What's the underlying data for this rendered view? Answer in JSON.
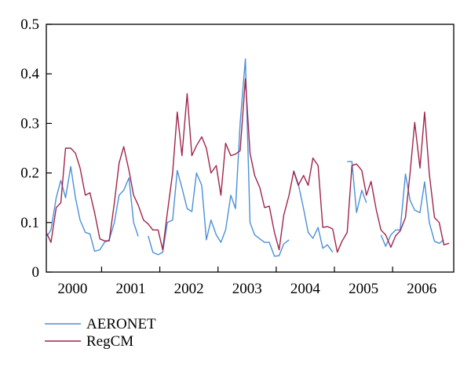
{
  "chart_data": {
    "type": "line",
    "title": "",
    "xlabel": "",
    "ylabel": "",
    "ylim": [
      0,
      0.5
    ],
    "xlim": [
      1999.55,
      2006.55
    ],
    "grid": false,
    "legend_position": "bottom-left",
    "y_ticks": [
      "0",
      "0.1",
      "0.2",
      "0.3",
      "0.4",
      "0.5"
    ],
    "x_tick_labels": [
      {
        "label": "2000",
        "x": 2000.0
      },
      {
        "label": "2001",
        "x": 2001.0
      },
      {
        "label": "2002",
        "x": 2002.0
      },
      {
        "label": "2003",
        "x": 2003.0
      },
      {
        "label": "2004",
        "x": 2004.0
      },
      {
        "label": "2005",
        "x": 2005.0
      },
      {
        "label": "2006",
        "x": 2006.0
      }
    ],
    "x_year_boundaries": [
      2000.5,
      2001.5,
      2002.5,
      2003.5,
      2004.5,
      2005.5
    ],
    "series": [
      {
        "name": "AERONET",
        "color": "#4a90d9",
        "points": [
          [
            1999.55,
            0.07
          ],
          [
            1999.63,
            0.085
          ],
          [
            1999.72,
            0.15
          ],
          [
            1999.8,
            0.185
          ],
          [
            1999.88,
            0.15
          ],
          [
            1999.97,
            0.213
          ],
          [
            2000.05,
            0.15
          ],
          [
            2000.13,
            0.105
          ],
          [
            2000.22,
            0.08
          ],
          [
            2000.3,
            0.077
          ],
          [
            2000.38,
            0.042
          ],
          [
            2000.47,
            0.045
          ],
          [
            2000.55,
            0.06
          ],
          [
            2000.63,
            0.065
          ],
          [
            2000.72,
            0.1
          ],
          [
            2000.8,
            0.155
          ],
          [
            2000.88,
            0.165
          ],
          [
            2000.97,
            0.19
          ],
          [
            2001.05,
            0.1
          ],
          [
            2001.13,
            0.072
          ],
          null,
          [
            2001.3,
            0.073
          ],
          [
            2001.38,
            0.04
          ],
          [
            2001.47,
            0.035
          ],
          [
            2001.55,
            0.04
          ],
          [
            2001.63,
            0.1
          ],
          [
            2001.72,
            0.105
          ],
          [
            2001.8,
            0.205
          ],
          [
            2001.88,
            0.17
          ],
          [
            2001.97,
            0.128
          ],
          [
            2002.05,
            0.122
          ],
          [
            2002.13,
            0.2
          ],
          [
            2002.22,
            0.175
          ],
          [
            2002.3,
            0.065
          ],
          [
            2002.38,
            0.105
          ],
          [
            2002.47,
            0.075
          ],
          [
            2002.55,
            0.06
          ],
          [
            2002.63,
            0.085
          ],
          [
            2002.72,
            0.155
          ],
          [
            2002.8,
            0.128
          ],
          [
            2002.88,
            0.3
          ],
          [
            2002.97,
            0.43
          ],
          [
            2003.05,
            0.1
          ],
          [
            2003.13,
            0.075
          ],
          [
            2003.22,
            0.067
          ],
          [
            2003.3,
            0.06
          ],
          [
            2003.38,
            0.06
          ],
          [
            2003.47,
            0.032
          ],
          [
            2003.55,
            0.033
          ],
          [
            2003.63,
            0.057
          ],
          [
            2003.72,
            0.065
          ],
          null,
          [
            2003.8,
            0.205
          ],
          [
            2003.88,
            0.178
          ],
          [
            2003.97,
            0.128
          ],
          [
            2004.05,
            0.08
          ],
          [
            2004.13,
            0.068
          ],
          [
            2004.22,
            0.09
          ],
          [
            2004.3,
            0.048
          ],
          [
            2004.38,
            0.055
          ],
          [
            2004.47,
            0.04
          ],
          null,
          [
            2004.72,
            0.223
          ],
          [
            2004.8,
            0.223
          ],
          [
            2004.88,
            0.12
          ],
          [
            2004.97,
            0.165
          ],
          [
            2005.05,
            0.14
          ],
          null,
          [
            2005.3,
            0.075
          ],
          [
            2005.38,
            0.052
          ],
          [
            2005.47,
            0.075
          ],
          [
            2005.55,
            0.085
          ],
          [
            2005.63,
            0.085
          ],
          [
            2005.72,
            0.198
          ],
          [
            2005.8,
            0.145
          ],
          [
            2005.88,
            0.125
          ],
          [
            2005.97,
            0.12
          ],
          [
            2006.05,
            0.182
          ],
          [
            2006.13,
            0.1
          ],
          [
            2006.22,
            0.062
          ],
          [
            2006.3,
            0.058
          ],
          [
            2006.38,
            0.065
          ]
        ]
      },
      {
        "name": "RegCM",
        "color": "#a0254a",
        "points": [
          [
            1999.55,
            0.08
          ],
          [
            1999.63,
            0.06
          ],
          [
            1999.72,
            0.13
          ],
          [
            1999.8,
            0.14
          ],
          [
            1999.88,
            0.25
          ],
          [
            1999.97,
            0.25
          ],
          [
            2000.05,
            0.24
          ],
          [
            2000.13,
            0.21
          ],
          [
            2000.22,
            0.155
          ],
          [
            2000.3,
            0.16
          ],
          [
            2000.38,
            0.12
          ],
          [
            2000.47,
            0.067
          ],
          [
            2000.55,
            0.063
          ],
          [
            2000.63,
            0.063
          ],
          [
            2000.72,
            0.14
          ],
          [
            2000.8,
            0.22
          ],
          [
            2000.88,
            0.253
          ],
          [
            2000.97,
            0.205
          ],
          [
            2001.05,
            0.155
          ],
          [
            2001.13,
            0.135
          ],
          [
            2001.22,
            0.105
          ],
          [
            2001.3,
            0.097
          ],
          [
            2001.38,
            0.085
          ],
          [
            2001.47,
            0.085
          ],
          [
            2001.55,
            0.045
          ],
          [
            2001.63,
            0.12
          ],
          [
            2001.72,
            0.2
          ],
          [
            2001.8,
            0.323
          ],
          [
            2001.88,
            0.235
          ],
          [
            2001.97,
            0.36
          ],
          [
            2002.05,
            0.235
          ],
          [
            2002.13,
            0.255
          ],
          [
            2002.22,
            0.273
          ],
          [
            2002.3,
            0.25
          ],
          [
            2002.38,
            0.2
          ],
          [
            2002.47,
            0.215
          ],
          [
            2002.55,
            0.155
          ],
          [
            2002.63,
            0.26
          ],
          [
            2002.72,
            0.235
          ],
          [
            2002.8,
            0.238
          ],
          [
            2002.88,
            0.245
          ],
          [
            2002.97,
            0.39
          ],
          [
            2003.05,
            0.24
          ],
          [
            2003.13,
            0.195
          ],
          [
            2003.22,
            0.17
          ],
          [
            2003.3,
            0.13
          ],
          [
            2003.38,
            0.133
          ],
          [
            2003.47,
            0.08
          ],
          [
            2003.55,
            0.045
          ],
          [
            2003.63,
            0.115
          ],
          [
            2003.72,
            0.155
          ],
          [
            2003.8,
            0.203
          ],
          [
            2003.88,
            0.175
          ],
          [
            2003.97,
            0.195
          ],
          [
            2004.05,
            0.175
          ],
          [
            2004.13,
            0.23
          ],
          [
            2004.22,
            0.215
          ],
          [
            2004.3,
            0.09
          ],
          [
            2004.38,
            0.092
          ],
          [
            2004.47,
            0.087
          ],
          [
            2004.55,
            0.04
          ],
          [
            2004.63,
            0.062
          ],
          [
            2004.72,
            0.08
          ],
          [
            2004.8,
            0.215
          ],
          [
            2004.88,
            0.218
          ],
          [
            2004.97,
            0.205
          ],
          [
            2005.05,
            0.155
          ],
          [
            2005.13,
            0.183
          ],
          [
            2005.22,
            0.125
          ],
          [
            2005.3,
            0.085
          ],
          [
            2005.38,
            0.075
          ],
          [
            2005.47,
            0.05
          ],
          [
            2005.55,
            0.073
          ],
          [
            2005.63,
            0.083
          ],
          [
            2005.72,
            0.11
          ],
          [
            2005.8,
            0.2
          ],
          [
            2005.88,
            0.302
          ],
          [
            2005.97,
            0.21
          ],
          [
            2006.05,
            0.323
          ],
          [
            2006.13,
            0.198
          ],
          [
            2006.22,
            0.11
          ],
          [
            2006.3,
            0.1
          ],
          [
            2006.38,
            0.055
          ],
          [
            2006.47,
            0.058
          ]
        ]
      }
    ]
  }
}
